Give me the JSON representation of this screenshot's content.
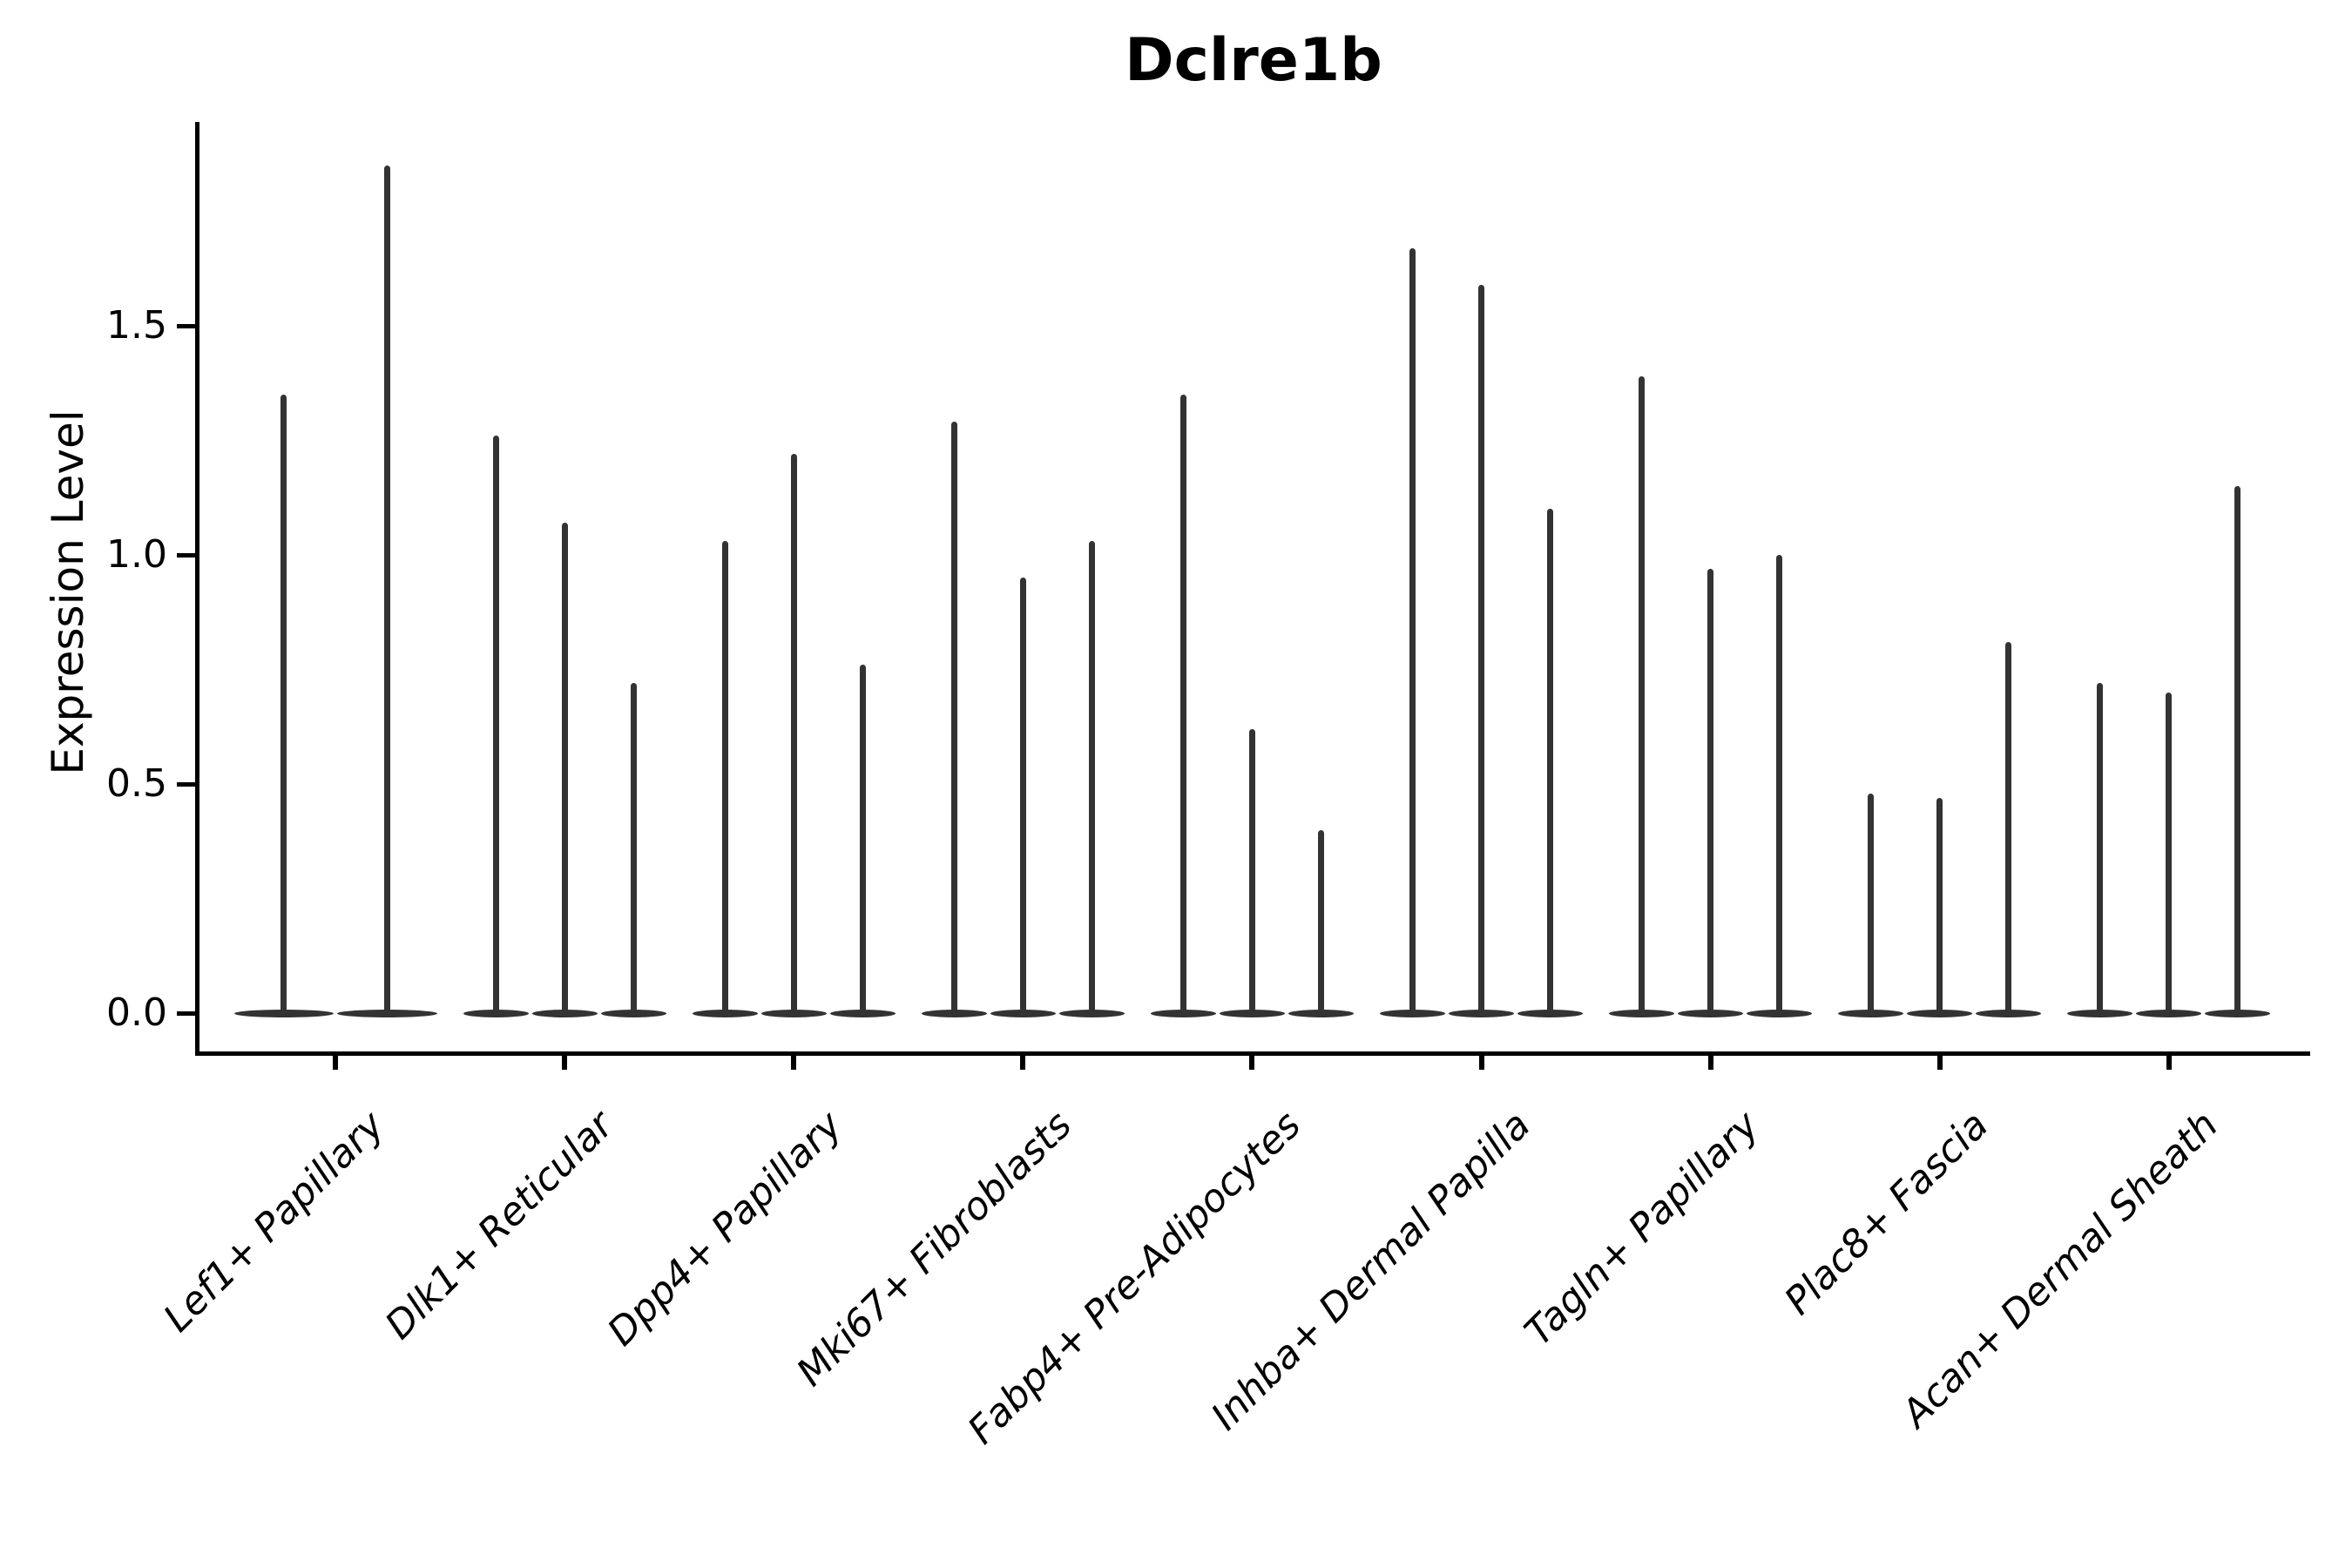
{
  "figure": {
    "title": "Dclre1b"
  },
  "axes": {
    "ylabel": "Expression Level",
    "ytick_labels": [
      "0.0",
      "0.5",
      "1.0",
      "1.5"
    ]
  },
  "chart_data": {
    "type": "violin",
    "title": "Dclre1b",
    "xlabel": "",
    "ylabel": "Expression Level",
    "ylim": [
      -0.09,
      1.95
    ],
    "ytick_values": [
      0.0,
      0.5,
      1.0,
      1.5
    ],
    "grid": false,
    "legend": "none",
    "categories": [
      "Lef1+ Papillary",
      "Dlk1+ Reticular",
      "Dpp4+ Papillary",
      "Mki67+ Fibroblasts",
      "Fabp4+ Pre-Adipocytes",
      "Inhba+ Dermal Papilla",
      "Tagln+ Papillary",
      "Plac8+ Fascia",
      "Acan+ Dermal Sheath"
    ],
    "description": "Violin plot of Dclre1b expression per cell type. Each category contains thin sub-violins; nearly all density sits at expression 0 (flat lens on the baseline) with a narrow spike rising to the maximum expression value listed per sub-violin.",
    "groups": [
      {
        "category": "Lef1+ Papillary",
        "spike_max_values": [
          1.35,
          1.85
        ]
      },
      {
        "category": "Dlk1+ Reticular",
        "spike_max_values": [
          1.26,
          1.07,
          0.72
        ]
      },
      {
        "category": "Dpp4+ Papillary",
        "spike_max_values": [
          1.03,
          1.22,
          0.76
        ]
      },
      {
        "category": "Mki67+ Fibroblasts",
        "spike_max_values": [
          1.29,
          0.95,
          1.03
        ]
      },
      {
        "category": "Fabp4+ Pre-Adipocytes",
        "spike_max_values": [
          1.35,
          0.62,
          0.4
        ]
      },
      {
        "category": "Inhba+ Dermal Papilla",
        "spike_max_values": [
          1.67,
          1.59,
          1.1
        ]
      },
      {
        "category": "Tagln+ Papillary",
        "spike_max_values": [
          1.39,
          0.97,
          1.0
        ]
      },
      {
        "category": "Plac8+ Fascia",
        "spike_max_values": [
          0.48,
          0.47,
          0.81
        ]
      },
      {
        "category": "Acan+ Dermal Sheath",
        "spike_max_values": [
          0.72,
          0.7,
          1.15
        ]
      }
    ],
    "colors": {
      "violin": "#333333",
      "axis": "#000000",
      "text": "#000000"
    }
  }
}
